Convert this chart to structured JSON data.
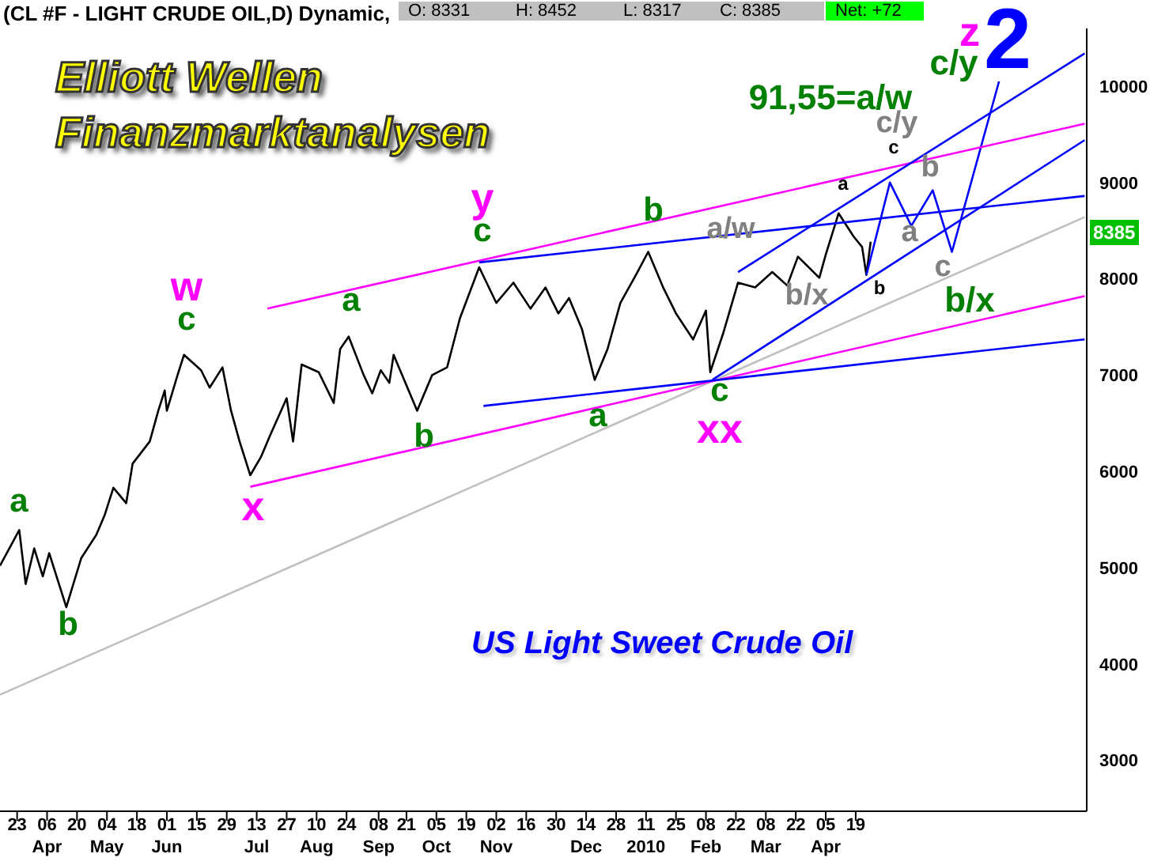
{
  "chart_data": {
    "type": "line",
    "title": "(CL #F - LIGHT CRUDE OIL,D) Dynamic,",
    "xlim": [
      "2009-03-15",
      "2010-08-05"
    ],
    "xticks": [
      {
        "value": "2009-03-23",
        "label": "23"
      },
      {
        "value": "2009-04-06",
        "label": "06\nApr"
      },
      {
        "value": "2009-04-20",
        "label": "20"
      },
      {
        "value": "2009-05-04",
        "label": "04\nMay"
      },
      {
        "value": "2009-05-18",
        "label": "18"
      },
      {
        "value": "2009-06-01",
        "label": "01\nJun"
      },
      {
        "value": "2009-06-15",
        "label": "15"
      },
      {
        "value": "2009-06-29",
        "label": "29"
      },
      {
        "value": "2009-07-13",
        "label": "13\nJul"
      },
      {
        "value": "2009-07-27",
        "label": "27"
      },
      {
        "value": "2009-08-10",
        "label": "10\nAug"
      },
      {
        "value": "2009-08-24",
        "label": "24"
      },
      {
        "value": "2009-09-08",
        "label": "08\nSep"
      },
      {
        "value": "2009-09-21",
        "label": "21"
      },
      {
        "value": "2009-10-05",
        "label": "05\nOct"
      },
      {
        "value": "2009-10-19",
        "label": "19"
      },
      {
        "value": "2009-11-02",
        "label": "02\nNov"
      },
      {
        "value": "2009-11-16",
        "label": "16"
      },
      {
        "value": "2009-11-30",
        "label": "30"
      },
      {
        "value": "2009-12-14",
        "label": "14\nDec"
      },
      {
        "value": "2009-12-28",
        "label": "28"
      },
      {
        "value": "2010-01-11",
        "label": "11\n2010"
      },
      {
        "value": "2010-01-25",
        "label": "25"
      },
      {
        "value": "2010-02-08",
        "label": "08\nFeb"
      },
      {
        "value": "2010-02-22",
        "label": "22"
      },
      {
        "value": "2010-03-08",
        "label": "08\nMar"
      },
      {
        "value": "2010-03-22",
        "label": "22"
      },
      {
        "value": "2010-04-05",
        "label": "05\nApr"
      },
      {
        "value": "2010-04-19",
        "label": "19"
      }
    ],
    "ylim": [
      2470,
      10600
    ],
    "yticks": [
      3000,
      4000,
      5000,
      6000,
      7000,
      8000,
      9000,
      10000
    ],
    "series": [
      {
        "color": "#000000",
        "x": [
          "2009-03-15",
          "2009-03-24",
          "2009-03-27",
          "2009-03-31",
          "2009-04-04",
          "2009-04-07",
          "2009-04-15",
          "2009-04-22",
          "2009-04-29",
          "2009-05-03",
          "2009-05-07",
          "2009-05-13",
          "2009-05-16",
          "2009-05-24",
          "2009-05-28",
          "2009-05-31",
          "2009-06-01",
          "2009-06-06",
          "2009-06-09",
          "2009-06-17",
          "2009-06-21",
          "2009-06-27",
          "2009-07-01",
          "2009-07-05",
          "2009-07-10",
          "2009-07-15",
          "2009-07-19",
          "2009-07-27",
          "2009-07-30",
          "2009-08-03",
          "2009-08-11",
          "2009-08-18",
          "2009-08-21",
          "2009-08-25",
          "2009-09-01",
          "2009-09-05",
          "2009-09-09",
          "2009-09-13",
          "2009-09-15",
          "2009-09-26",
          "2009-10-03",
          "2009-10-10",
          "2009-10-16",
          "2009-10-25",
          "2009-11-02",
          "2009-11-10",
          "2009-11-18",
          "2009-11-25",
          "2009-12-01",
          "2009-12-06",
          "2009-12-12",
          "2009-12-18",
          "2009-12-24",
          "2009-12-30",
          "2010-01-07",
          "2010-01-12",
          "2010-01-19",
          "2010-01-25",
          "2010-02-02",
          "2010-02-08",
          "2010-02-10",
          "2010-02-16",
          "2010-02-23",
          "2010-03-03",
          "2010-03-11",
          "2010-03-18",
          "2010-03-23",
          "2010-04-02",
          "2010-04-05",
          "2010-04-11",
          "2010-04-18",
          "2010-04-22",
          "2010-04-24",
          "2010-04-26"
        ],
        "values": [
          5020,
          5390,
          4830,
          5200,
          4910,
          5150,
          4590,
          5100,
          5340,
          5550,
          5830,
          5670,
          6080,
          6310,
          6630,
          6840,
          6630,
          7000,
          7210,
          7050,
          6870,
          7080,
          6630,
          6310,
          5960,
          6150,
          6360,
          6760,
          6310,
          7110,
          7030,
          6710,
          7270,
          7400,
          7000,
          6810,
          7050,
          6920,
          7210,
          6630,
          7000,
          7080,
          7590,
          8120,
          7750,
          7960,
          7690,
          7910,
          7640,
          7800,
          7480,
          6950,
          7270,
          7750,
          8070,
          8280,
          7910,
          7640,
          7370,
          7670,
          7030,
          7430,
          7960,
          7910,
          8070,
          7930,
          8230,
          8010,
          8250,
          8680,
          8440,
          8330,
          8040,
          8385
        ]
      },
      {
        "color": "#0000ff",
        "x": [
          "2010-04-24",
          "2010-05-05",
          "2010-05-15",
          "2010-05-25",
          "2010-06-03",
          "2010-06-25"
        ],
        "values": [
          8040,
          9000,
          8550,
          8920,
          8280,
          10050
        ]
      },
      {
        "color": "#c0c0c0",
        "x": [
          "2009-03-15",
          "2010-08-04"
        ],
        "values": [
          3680,
          8640
        ]
      },
      {
        "color": "#ff00ff",
        "x": [
          "2009-07-18",
          "2010-08-04"
        ],
        "values": [
          7690,
          9610
        ]
      },
      {
        "color": "#ff00ff",
        "x": [
          "2009-07-10",
          "2010-08-04"
        ],
        "values": [
          5840,
          7820
        ]
      },
      {
        "color": "#0000ff",
        "x": [
          "2009-10-25",
          "2010-08-04"
        ],
        "values": [
          8170,
          8860
        ]
      },
      {
        "color": "#0000ff",
        "x": [
          "2009-10-27",
          "2010-08-04"
        ],
        "values": [
          6680,
          7370
        ]
      },
      {
        "color": "#0000ff",
        "x": [
          "2010-02-23",
          "2010-08-04"
        ],
        "values": [
          8070,
          10340
        ]
      },
      {
        "color": "#0000ff",
        "x": [
          "2010-02-11",
          "2010-08-04"
        ],
        "values": [
          6950,
          9440
        ]
      }
    ],
    "annotations": [
      "Elliott Wellen",
      "Finanzmarktanalysen",
      "US Light Sweet Crude Oil",
      "O: 8331",
      "H: 8452",
      "L: 8317",
      "C: 8385",
      "Net: +72",
      "8385",
      "a",
      "b",
      "c",
      "w",
      "x",
      "a",
      "b",
      "c",
      "y",
      "a",
      "b",
      "c",
      "xx",
      "a/w",
      "b/x",
      "a",
      "b",
      "c",
      "c/y",
      "a",
      "b",
      "c",
      "b/x",
      "91,55=a/w",
      "c/y",
      "z",
      "2"
    ]
  }
}
